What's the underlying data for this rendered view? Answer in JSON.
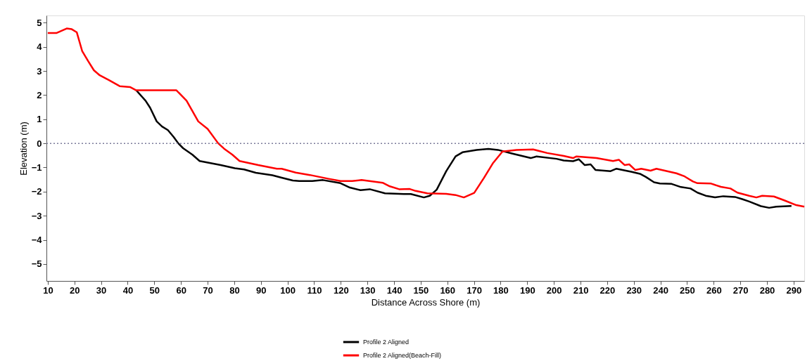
{
  "chart_data": {
    "type": "line",
    "xlabel": "Distance Across Shore (m)",
    "ylabel": "Elevation (m)",
    "xlim": [
      9.5,
      294
    ],
    "ylim": [
      -5.7,
      5.3
    ],
    "xticks": [
      10,
      20,
      30,
      40,
      50,
      60,
      70,
      80,
      90,
      100,
      110,
      120,
      130,
      140,
      150,
      160,
      170,
      180,
      190,
      200,
      210,
      220,
      230,
      240,
      250,
      260,
      270,
      280,
      290
    ],
    "yticks": [
      -5,
      -4,
      -3,
      -2,
      -1,
      0,
      1,
      2,
      3,
      4,
      5
    ],
    "grid": false,
    "legend": "bottom",
    "marker": "none",
    "line_style": "solid",
    "ref_lines": [
      {
        "axis": "y",
        "value": 0,
        "color": "#7a7a9a",
        "line_style": "dotted"
      }
    ],
    "series": [
      {
        "name": "Profile 2 Aligned",
        "color": "#000000",
        "x": [
          43.2,
          46.7,
          48.4,
          50.9,
          52.9,
          55.1,
          57.3,
          59,
          60.8,
          64.3,
          67,
          74.9,
          80.2,
          83.7,
          88.1,
          94.3,
          97.8,
          102,
          104.4,
          109.3,
          113.3,
          119.9,
          123.4,
          127.4,
          130.9,
          136.6,
          143.7,
          146.3,
          151.2,
          153.4,
          156,
          159.6,
          163.1,
          165.7,
          171,
          175.4,
          179,
          184.2,
          191.3,
          193.5,
          201,
          203.7,
          207.2,
          209.4,
          211.6,
          213.8,
          215.6,
          221.3,
          223.5,
          229.3,
          232.3,
          234.5,
          237.6,
          239.8,
          244.2,
          247.7,
          251.3,
          253.9,
          257,
          260.5,
          263.6,
          268,
          270.7,
          273.3,
          277.7,
          280.8,
          283.5,
          289.2
        ],
        "values": [
          2.2,
          1.77,
          1.48,
          0.91,
          0.7,
          0.55,
          0.26,
          0,
          -0.2,
          -0.47,
          -0.73,
          -0.9,
          -1.03,
          -1.08,
          -1.22,
          -1.32,
          -1.42,
          -1.54,
          -1.56,
          -1.56,
          -1.52,
          -1.65,
          -1.83,
          -1.94,
          -1.9,
          -2.07,
          -2.1,
          -2.1,
          -2.24,
          -2.17,
          -1.92,
          -1.15,
          -0.54,
          -0.37,
          -0.27,
          -0.23,
          -0.27,
          -0.42,
          -0.61,
          -0.54,
          -0.64,
          -0.71,
          -0.74,
          -0.66,
          -0.9,
          -0.87,
          -1.1,
          -1.15,
          -1.05,
          -1.18,
          -1.26,
          -1.39,
          -1.61,
          -1.66,
          -1.68,
          -1.81,
          -1.87,
          -2.04,
          -2.17,
          -2.24,
          -2.19,
          -2.22,
          -2.31,
          -2.41,
          -2.6,
          -2.67,
          -2.62,
          -2.59
        ]
      },
      {
        "name": "Profile 2 Aligned(Beach-Fill)",
        "color": "#ff0000",
        "x": [
          10,
          13.2,
          17.1,
          19,
          20.9,
          22.9,
          25.1,
          27.3,
          29.5,
          33,
          37,
          41,
          43.2,
          58.3,
          62.1,
          66.5,
          70,
          74,
          76.2,
          79.3,
          82,
          89,
          96,
          97.8,
          103.1,
          108.4,
          115.5,
          119.9,
          124.3,
          127.8,
          135.7,
          138.4,
          141.9,
          145.9,
          148.1,
          152.5,
          159.6,
          163.1,
          166.2,
          170.1,
          173.7,
          177.2,
          180.7,
          186,
          192.2,
          197.5,
          203.7,
          207.2,
          208.5,
          216,
          222.2,
          224.4,
          226.6,
          228.3,
          230.5,
          232.8,
          236.3,
          238.5,
          246,
          249.1,
          252.2,
          253.9,
          258.8,
          262.7,
          266.3,
          268.9,
          273.3,
          276,
          278.2,
          282.6,
          286.5,
          291,
          294
        ],
        "values": [
          4.57,
          4.57,
          4.76,
          4.73,
          4.6,
          3.83,
          3.42,
          3.03,
          2.82,
          2.62,
          2.37,
          2.33,
          2.2,
          2.2,
          1.77,
          0.91,
          0.6,
          0,
          -0.22,
          -0.47,
          -0.73,
          -0.9,
          -1.05,
          -1.05,
          -1.21,
          -1.31,
          -1.47,
          -1.56,
          -1.56,
          -1.52,
          -1.63,
          -1.78,
          -1.9,
          -1.89,
          -1.97,
          -2.07,
          -2.09,
          -2.14,
          -2.24,
          -2.05,
          -1.44,
          -0.81,
          -0.34,
          -0.27,
          -0.25,
          -0.4,
          -0.52,
          -0.61,
          -0.54,
          -0.61,
          -0.73,
          -0.68,
          -0.9,
          -0.87,
          -1.1,
          -1.05,
          -1.13,
          -1.05,
          -1.24,
          -1.37,
          -1.58,
          -1.65,
          -1.66,
          -1.8,
          -1.87,
          -2.04,
          -2.17,
          -2.24,
          -2.17,
          -2.2,
          -2.36,
          -2.56,
          -2.62
        ]
      }
    ]
  }
}
